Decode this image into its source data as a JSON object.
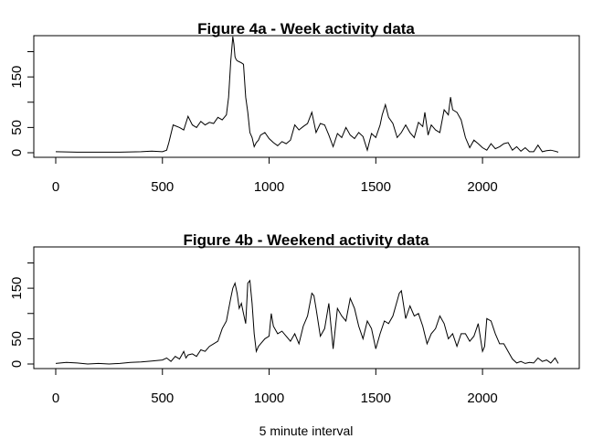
{
  "xlabel": "5 minute interval",
  "chart_data": [
    {
      "type": "line",
      "title": "Figure 4a - Week activity data",
      "xlabel": "",
      "ylabel": "",
      "xlim": [
        0,
        2355
      ],
      "ylim": [
        0,
        230
      ],
      "xticks": [
        0,
        500,
        1000,
        1500,
        2000
      ],
      "yticks": [
        0,
        50,
        150
      ],
      "grid": false,
      "color": "#000000",
      "x": [
        0,
        100,
        200,
        300,
        400,
        450,
        500,
        520,
        530,
        550,
        580,
        600,
        620,
        640,
        660,
        680,
        700,
        720,
        740,
        760,
        780,
        800,
        810,
        820,
        830,
        835,
        840,
        845,
        850,
        860,
        870,
        880,
        890,
        900,
        910,
        920,
        930,
        940,
        950,
        960,
        980,
        1000,
        1020,
        1040,
        1060,
        1080,
        1100,
        1120,
        1140,
        1160,
        1180,
        1200,
        1210,
        1220,
        1240,
        1260,
        1280,
        1300,
        1320,
        1340,
        1360,
        1380,
        1400,
        1420,
        1440,
        1460,
        1480,
        1500,
        1520,
        1530,
        1545,
        1560,
        1580,
        1600,
        1620,
        1640,
        1660,
        1680,
        1700,
        1720,
        1730,
        1745,
        1760,
        1780,
        1800,
        1820,
        1840,
        1850,
        1860,
        1880,
        1900,
        1920,
        1940,
        1960,
        1980,
        2000,
        2020,
        2040,
        2060,
        2080,
        2100,
        2120,
        2140,
        2160,
        2180,
        2200,
        2220,
        2240,
        2260,
        2280,
        2300,
        2320,
        2340,
        2355
      ],
      "y": [
        2,
        1,
        1,
        1,
        2,
        3,
        2,
        5,
        20,
        55,
        50,
        45,
        72,
        55,
        50,
        62,
        55,
        60,
        58,
        70,
        65,
        75,
        110,
        180,
        230,
        215,
        190,
        185,
        182,
        180,
        178,
        175,
        110,
        80,
        40,
        30,
        12,
        20,
        25,
        35,
        40,
        28,
        20,
        14,
        22,
        18,
        25,
        55,
        45,
        52,
        58,
        80,
        60,
        40,
        58,
        55,
        35,
        12,
        38,
        30,
        50,
        35,
        28,
        40,
        32,
        5,
        38,
        30,
        55,
        75,
        95,
        70,
        58,
        30,
        40,
        55,
        40,
        30,
        60,
        52,
        80,
        35,
        55,
        45,
        40,
        85,
        75,
        110,
        85,
        80,
        65,
        30,
        10,
        25,
        18,
        10,
        5,
        18,
        8,
        12,
        18,
        20,
        5,
        12,
        3,
        10,
        2,
        2,
        15,
        2,
        4,
        5,
        3,
        1
      ],
      "line_type": "straight"
    },
    {
      "type": "line",
      "title": "Figure 4b - Weekend activity data",
      "xlabel": "5 minute interval",
      "ylabel": "",
      "xlim": [
        0,
        2355
      ],
      "ylim": [
        0,
        230
      ],
      "xticks": [
        0,
        500,
        1000,
        1500,
        2000
      ],
      "yticks": [
        0,
        50,
        150
      ],
      "grid": false,
      "color": "#000000",
      "x": [
        0,
        50,
        100,
        150,
        200,
        250,
        300,
        350,
        400,
        450,
        500,
        520,
        540,
        560,
        580,
        600,
        610,
        620,
        640,
        660,
        680,
        700,
        720,
        740,
        760,
        780,
        800,
        820,
        830,
        840,
        850,
        860,
        870,
        880,
        890,
        900,
        910,
        920,
        930,
        940,
        950,
        960,
        980,
        1000,
        1010,
        1020,
        1040,
        1060,
        1080,
        1100,
        1120,
        1140,
        1160,
        1180,
        1200,
        1210,
        1220,
        1240,
        1260,
        1280,
        1300,
        1320,
        1340,
        1360,
        1380,
        1400,
        1420,
        1440,
        1460,
        1480,
        1500,
        1520,
        1540,
        1560,
        1580,
        1600,
        1610,
        1620,
        1640,
        1660,
        1680,
        1700,
        1720,
        1740,
        1760,
        1780,
        1800,
        1820,
        1840,
        1860,
        1880,
        1900,
        1920,
        1940,
        1960,
        1980,
        2000,
        2010,
        2020,
        2040,
        2060,
        2080,
        2100,
        2120,
        2140,
        2160,
        2180,
        2200,
        2220,
        2240,
        2260,
        2280,
        2300,
        2320,
        2340,
        2355
      ],
      "y": [
        1,
        3,
        2,
        0,
        1,
        0,
        1,
        3,
        4,
        6,
        8,
        12,
        5,
        15,
        10,
        25,
        12,
        18,
        20,
        15,
        28,
        25,
        35,
        40,
        45,
        70,
        85,
        130,
        150,
        160,
        140,
        110,
        120,
        100,
        80,
        160,
        165,
        120,
        60,
        25,
        35,
        40,
        50,
        55,
        100,
        75,
        60,
        65,
        55,
        45,
        60,
        40,
        75,
        95,
        140,
        135,
        110,
        55,
        70,
        120,
        30,
        110,
        95,
        85,
        130,
        110,
        75,
        50,
        85,
        70,
        30,
        60,
        85,
        80,
        95,
        125,
        140,
        145,
        90,
        115,
        95,
        100,
        75,
        40,
        60,
        70,
        95,
        80,
        50,
        60,
        35,
        60,
        60,
        45,
        55,
        80,
        25,
        35,
        90,
        85,
        60,
        40,
        40,
        25,
        10,
        2,
        5,
        1,
        3,
        2,
        12,
        5,
        8,
        2,
        12,
        1
      ],
      "line_type": "straight"
    }
  ]
}
